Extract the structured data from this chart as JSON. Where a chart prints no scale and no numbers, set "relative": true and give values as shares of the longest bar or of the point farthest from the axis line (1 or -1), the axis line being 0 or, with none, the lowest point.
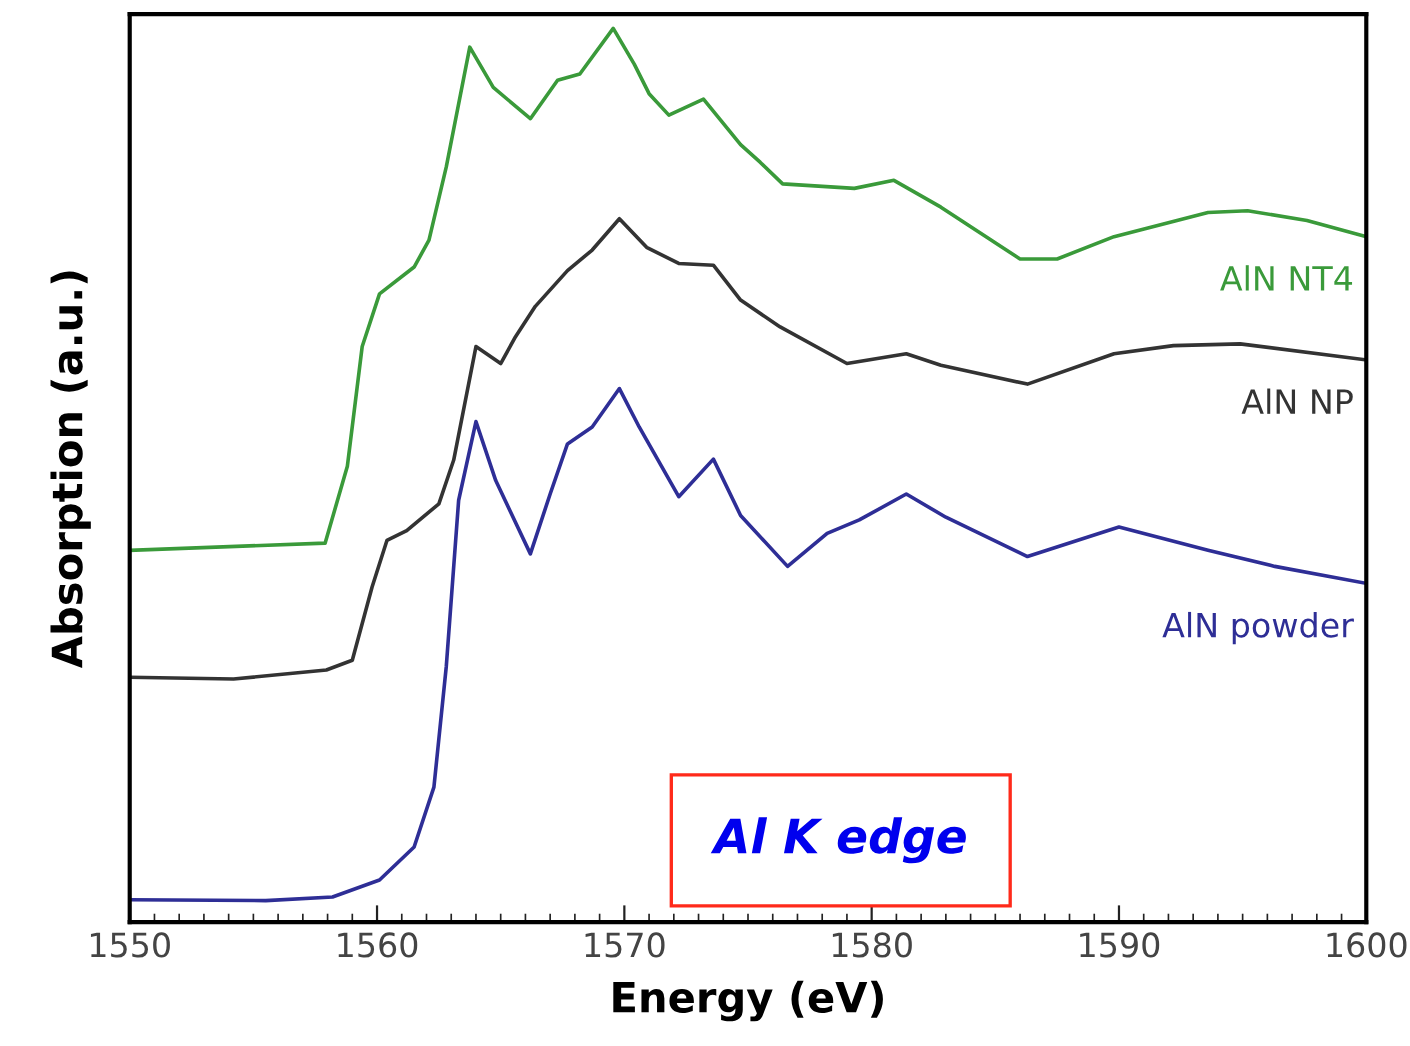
{
  "chart_data": {
    "type": "line",
    "relative": true,
    "xlabel": "Energy (eV)",
    "ylabel": "Absorption (a.u.)",
    "xlim": [
      1550,
      1600
    ],
    "xticks": [
      1550,
      1560,
      1570,
      1580,
      1590,
      1600
    ],
    "grid": false,
    "legend": false,
    "marker": "none",
    "line_style": "solid",
    "annotations": [
      "Al K edge"
    ],
    "series": [
      {
        "name": "AlN NT4",
        "color": "#3a9a3a",
        "x": [
          1550,
          1557.9,
          1558.8,
          1559.4,
          1560.1,
          1561.5,
          1562.1,
          1562.8,
          1563.75,
          1564.7,
          1566.2,
          1567.3,
          1568.2,
          1569.55,
          1570.4,
          1571.0,
          1571.8,
          1573.2,
          1574.7,
          1575.5,
          1576.4,
          1579.3,
          1580.9,
          1582.8,
          1586.0,
          1587.5,
          1589.8,
          1593.6,
          1595.2,
          1597.6,
          1600
        ],
        "values": [
          0.416,
          0.424,
          0.51,
          0.644,
          0.703,
          0.733,
          0.763,
          0.845,
          0.979,
          0.934,
          0.899,
          0.942,
          0.949,
          1.0,
          0.96,
          0.927,
          0.903,
          0.921,
          0.87,
          0.85,
          0.826,
          0.821,
          0.83,
          0.8,
          0.742,
          0.742,
          0.767,
          0.794,
          0.796,
          0.785,
          0.767
        ]
      },
      {
        "name": "AlN NP",
        "color": "#333333",
        "x": [
          1550,
          1554.2,
          1557.95,
          1559.0,
          1559.8,
          1560.4,
          1561.2,
          1562.5,
          1563.1,
          1564.0,
          1565.0,
          1565.6,
          1566.4,
          1567.7,
          1568.7,
          1569.8,
          1570.9,
          1572.2,
          1573.6,
          1574.7,
          1576.3,
          1579.0,
          1581.4,
          1582.8,
          1586.3,
          1589.8,
          1592.2,
          1594.9,
          1600
        ],
        "values": [
          0.274,
          0.272,
          0.282,
          0.293,
          0.375,
          0.427,
          0.438,
          0.468,
          0.517,
          0.644,
          0.625,
          0.655,
          0.689,
          0.729,
          0.752,
          0.787,
          0.755,
          0.737,
          0.735,
          0.696,
          0.666,
          0.625,
          0.636,
          0.623,
          0.602,
          0.636,
          0.645,
          0.647,
          0.629
        ]
      },
      {
        "name": "AlN powder",
        "color": "#2e2e96",
        "x": [
          1550,
          1555.5,
          1558.2,
          1560.1,
          1561.5,
          1562.3,
          1562.8,
          1563.3,
          1564.0,
          1564.8,
          1566.2,
          1567.0,
          1567.7,
          1568.7,
          1569.8,
          1570.6,
          1572.2,
          1573.6,
          1574.7,
          1576.6,
          1578.2,
          1579.5,
          1581.4,
          1583.0,
          1586.3,
          1590.0,
          1593.6,
          1596.3,
          1600
        ],
        "values": [
          0.025,
          0.024,
          0.028,
          0.047,
          0.084,
          0.151,
          0.286,
          0.472,
          0.56,
          0.494,
          0.412,
          0.479,
          0.535,
          0.554,
          0.597,
          0.554,
          0.476,
          0.518,
          0.455,
          0.398,
          0.435,
          0.45,
          0.479,
          0.453,
          0.409,
          0.442,
          0.416,
          0.398,
          0.379
        ]
      }
    ]
  }
}
